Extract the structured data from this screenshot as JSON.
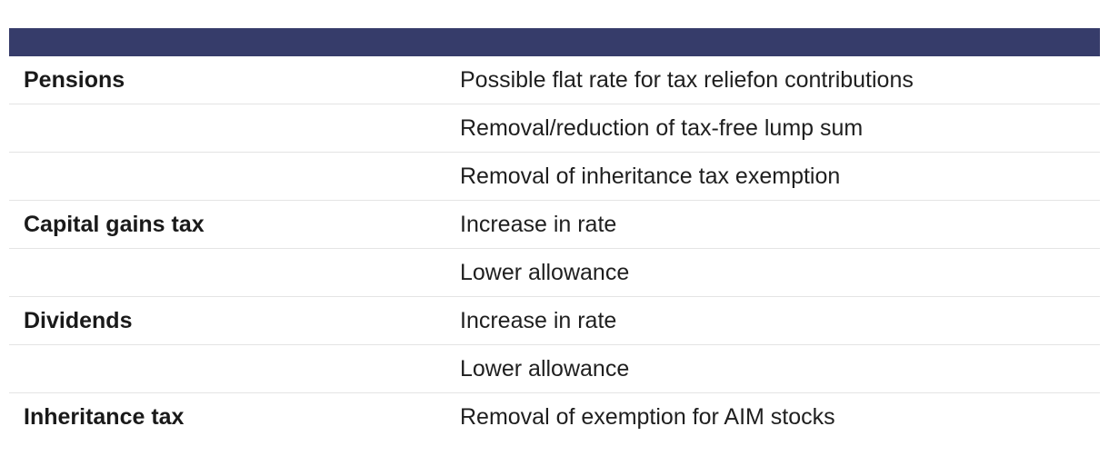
{
  "table": {
    "rows": [
      {
        "category": "Pensions",
        "change": "Possible flat rate for tax reliefon contributions"
      },
      {
        "category": "",
        "change": "Removal/reduction of tax-free lump sum"
      },
      {
        "category": "",
        "change": "Removal of inheritance tax exemption"
      },
      {
        "category": "Capital gains tax",
        "change": "Increase in rate"
      },
      {
        "category": "",
        "change": "Lower allowance"
      },
      {
        "category": "Dividends",
        "change": "Increase in rate"
      },
      {
        "category": "",
        "change": "Lower allowance"
      },
      {
        "category": "Inheritance tax",
        "change": "Removal of exemption for AIM stocks"
      }
    ]
  },
  "colors": {
    "header": "#363c6a",
    "divider": "#e4e4e4"
  }
}
